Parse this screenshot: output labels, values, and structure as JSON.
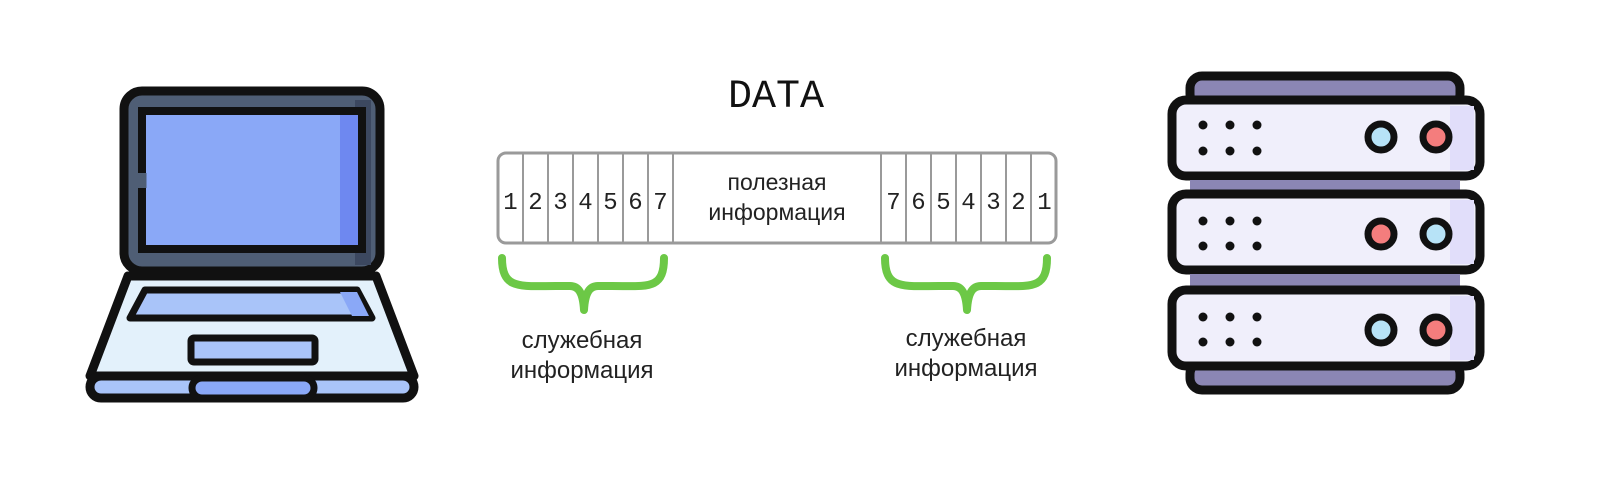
{
  "title": "DATA",
  "header_cells": [
    "1",
    "2",
    "3",
    "4",
    "5",
    "6",
    "7"
  ],
  "payload_label": {
    "line1": "полезная",
    "line2": "информация"
  },
  "trailer_cells": [
    "7",
    "6",
    "5",
    "4",
    "3",
    "2",
    "1"
  ],
  "left_caption": {
    "line1": "служебная",
    "line2": "информация"
  },
  "right_caption": {
    "line1": "служебная",
    "line2": "информация"
  },
  "icons": {
    "client": "laptop-icon",
    "server": "server-rack-icon"
  },
  "colors": {
    "brace": "#6cc846",
    "outline": "#111111",
    "frame_border": "#9a9a9a",
    "laptop_screen": "#8aa8f7",
    "laptop_body": "#e3f1fb",
    "server_body": "#f0effb",
    "server_stripe": "#8b86b4",
    "led_blue": "#b7e3f7",
    "led_red": "#f47d7d"
  }
}
